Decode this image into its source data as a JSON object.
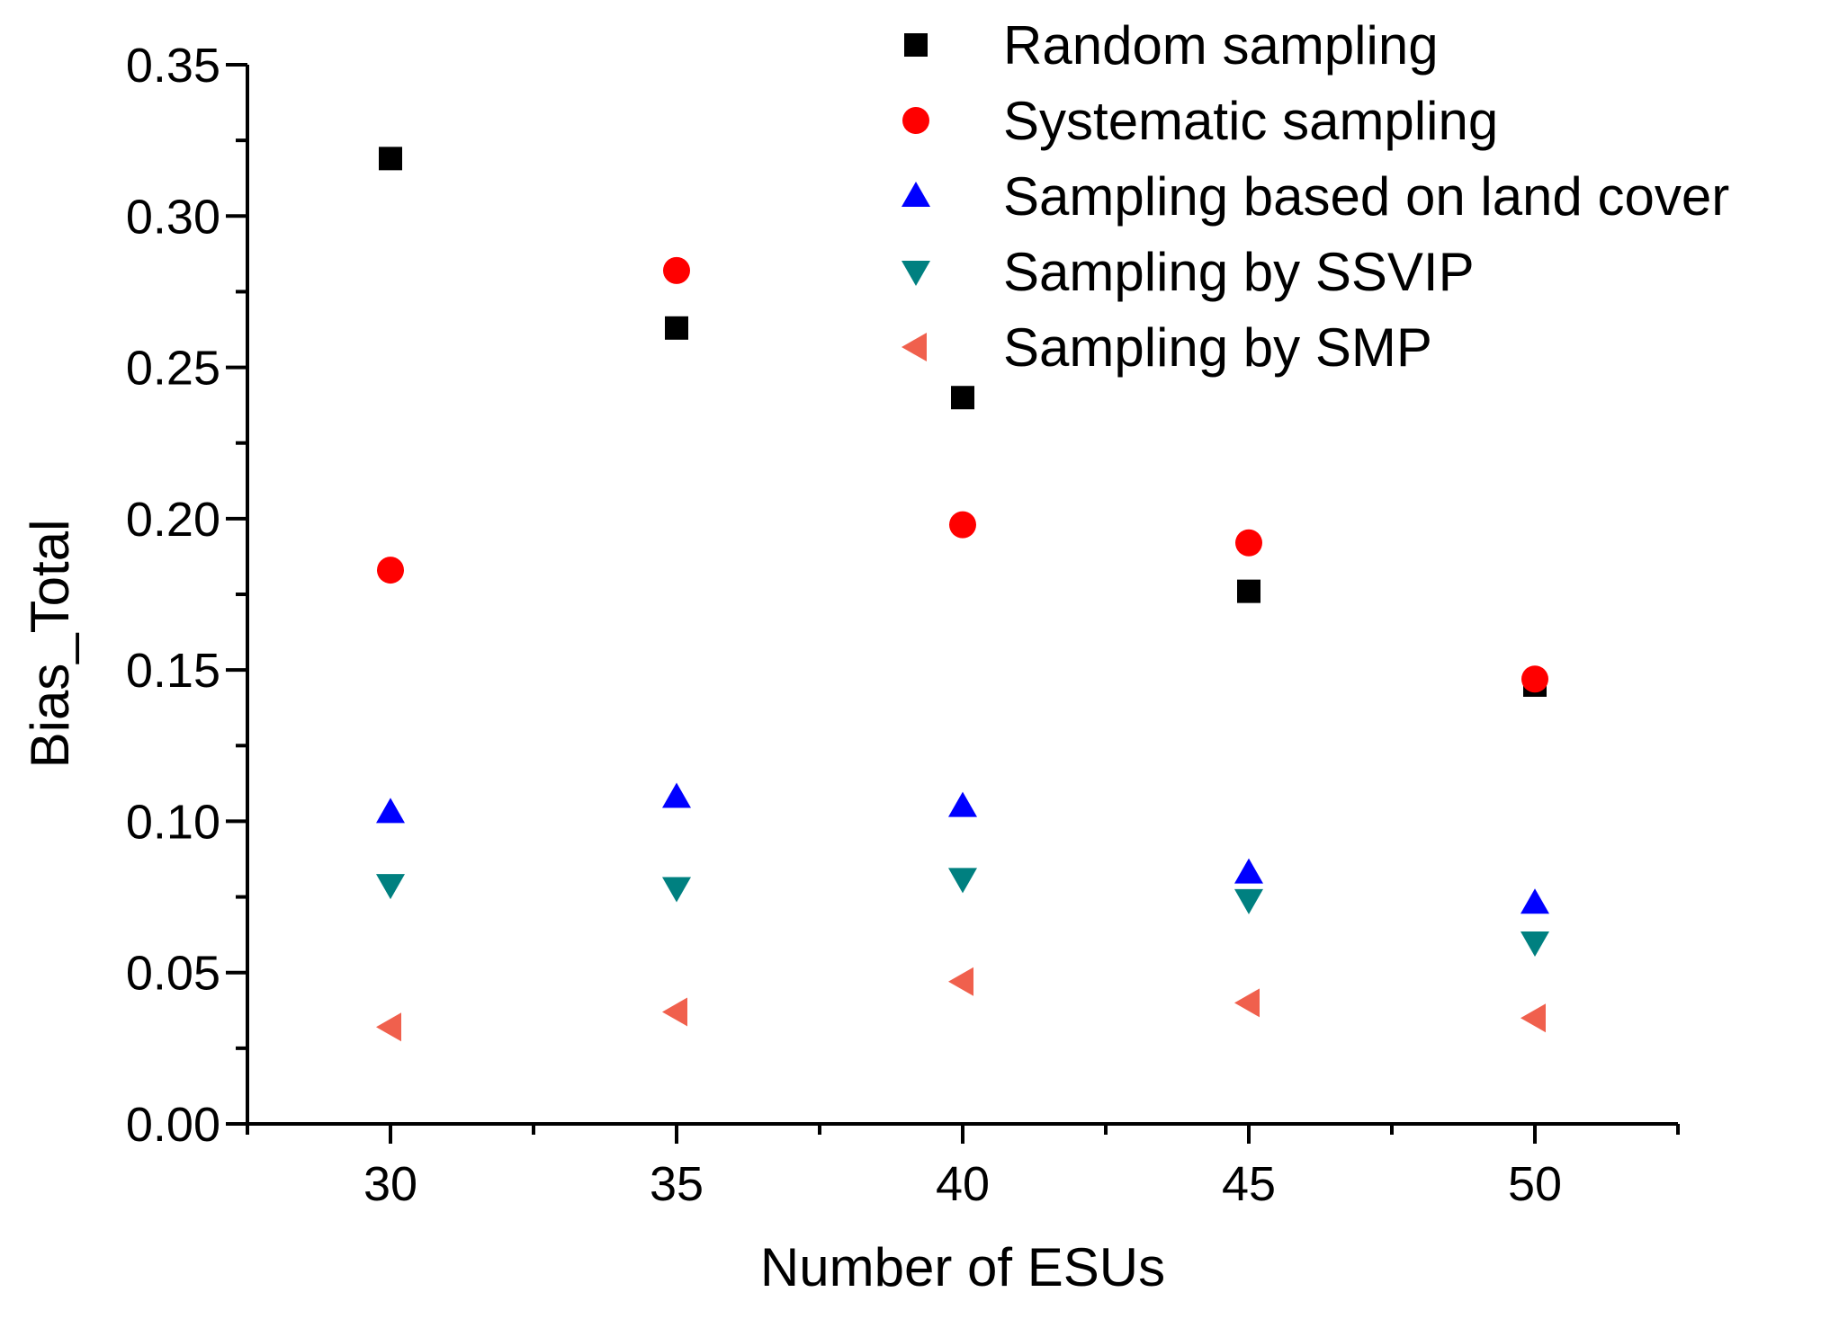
{
  "chart_data": {
    "type": "scatter",
    "title": "",
    "xlabel": "Number of ESUs",
    "ylabel": "Bias_Total",
    "xlim": [
      27.5,
      52.5
    ],
    "ylim": [
      0,
      0.35
    ],
    "x_ticks": [
      30,
      35,
      40,
      45,
      50
    ],
    "x_tick_labels": [
      "30",
      "35",
      "40",
      "45",
      "50"
    ],
    "y_ticks": [
      0,
      0.05,
      0.1,
      0.15,
      0.2,
      0.25,
      0.3,
      0.35
    ],
    "y_tick_labels": [
      "0.00",
      "0.05",
      "0.10",
      "0.15",
      "0.20",
      "0.25",
      "0.30",
      "0.35"
    ],
    "grid": false,
    "legend_position": "top-right",
    "x": [
      30,
      35,
      40,
      45,
      50
    ],
    "series": [
      {
        "name": "Random sampling",
        "marker": "square",
        "color": "#000000",
        "values": [
          0.319,
          0.263,
          0.24,
          0.176,
          0.145
        ]
      },
      {
        "name": "Systematic sampling",
        "marker": "circle",
        "color": "#ff0000",
        "values": [
          0.183,
          0.282,
          0.198,
          0.192,
          0.147
        ]
      },
      {
        "name": "Sampling based on land cover",
        "marker": "triangle-up",
        "color": "#0000ff",
        "values": [
          0.103,
          0.108,
          0.105,
          0.083,
          0.073
        ]
      },
      {
        "name": "Sampling by SSVIP",
        "marker": "triangle-down",
        "color": "#008080",
        "values": [
          0.079,
          0.078,
          0.081,
          0.074,
          0.06
        ]
      },
      {
        "name": "Sampling by SMP",
        "marker": "triangle-left",
        "color": "#f0604d",
        "values": [
          0.032,
          0.037,
          0.047,
          0.04,
          0.035
        ]
      }
    ]
  }
}
